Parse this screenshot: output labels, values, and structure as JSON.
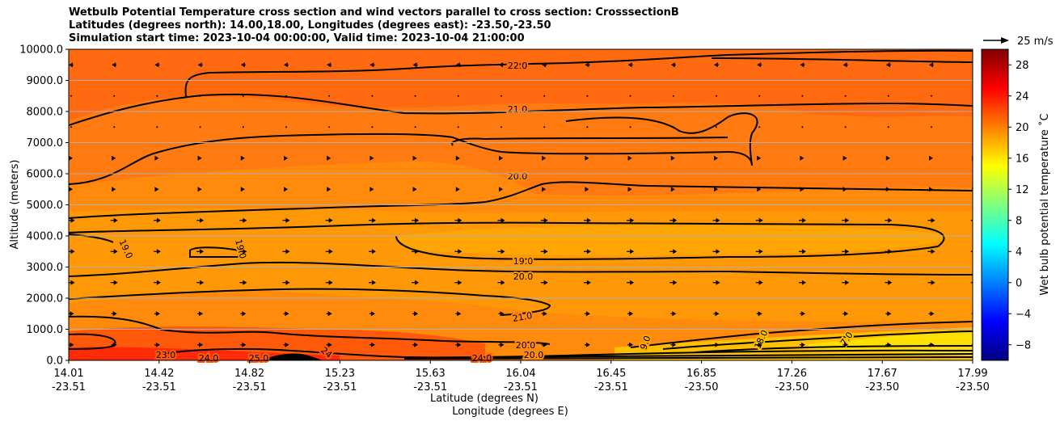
{
  "chart_data": {
    "type": "heatmap",
    "title_lines": [
      "Wetbulb Potential Temperature cross section and wind vectors parallel to cross section: CrosssectionB",
      "Latitudes (degrees north): 14.00,18.00, Longitudes (degrees east): -23.50,-23.50",
      "Simulation start time: 2023-10-04 00:00:00, Valid time: 2023-10-04 21:00:00"
    ],
    "ylabel": "Altitude (meters)",
    "xlabel_lines": [
      "Latitude (degrees N)",
      "Longitude (degrees E)"
    ],
    "ylim": [
      0,
      10000
    ],
    "y_ticks": [
      "0.0",
      "1000.0",
      "2000.0",
      "3000.0",
      "4000.0",
      "5000.0",
      "6000.0",
      "7000.0",
      "8000.0",
      "9000.0",
      "10000.0"
    ],
    "x_ticks": [
      {
        "lat": "14.01",
        "lon": "-23.51"
      },
      {
        "lat": "14.42",
        "lon": "-23.51"
      },
      {
        "lat": "14.82",
        "lon": "-23.51"
      },
      {
        "lat": "15.23",
        "lon": "-23.51"
      },
      {
        "lat": "15.63",
        "lon": "-23.51"
      },
      {
        "lat": "16.04",
        "lon": "-23.51"
      },
      {
        "lat": "16.45",
        "lon": "-23.51"
      },
      {
        "lat": "16.85",
        "lon": "-23.50"
      },
      {
        "lat": "17.26",
        "lon": "-23.50"
      },
      {
        "lat": "17.67",
        "lon": "-23.50"
      },
      {
        "lat": "17.99",
        "lon": "-23.50"
      }
    ],
    "grid": true,
    "colorbar": {
      "label": "Wet bulb potential temperature ˚C",
      "range": [
        -10,
        30
      ],
      "ticks": [
        "−8",
        "−4",
        "0",
        "4",
        "8",
        "12",
        "16",
        "20",
        "24",
        "28"
      ],
      "tick_values": [
        -8,
        -4,
        0,
        4,
        8,
        12,
        16,
        20,
        24,
        28
      ]
    },
    "quiver_key": {
      "label": "25 m/s",
      "speed": 25
    },
    "contour_labels": [
      "22.0",
      "21.0",
      "20.0",
      "19.0",
      "20.0",
      "21.0",
      "19.0",
      "19.0",
      "23.0",
      "24.0",
      "25.0",
      "24",
      "24.0",
      "20.0",
      "20.0",
      "9.0",
      "18.0",
      "7.0"
    ],
    "field_description_levels": [
      19,
      20,
      21,
      22,
      23,
      24,
      25
    ]
  }
}
